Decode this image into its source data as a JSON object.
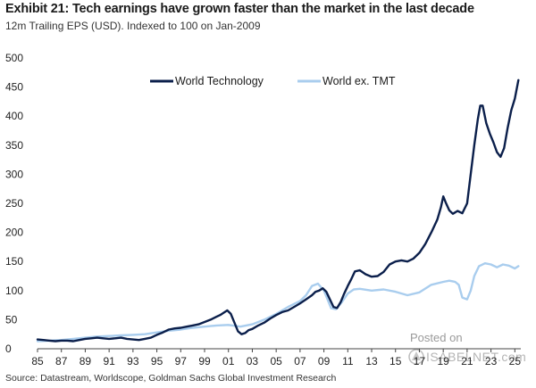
{
  "header": {
    "title": "Exhibit 21: Tech earnings have grown faster than the market in the last decade",
    "subtitle": "12m Trailing EPS (USD). Indexed to 100 on Jan-2009"
  },
  "footer": {
    "source": "Source: Datastream, Worldscope, Goldman Sachs Global Investment Research"
  },
  "watermark": {
    "line1": "Posted on",
    "line2": "ISABELNET.com"
  },
  "colors": {
    "world_technology": "#0b1f4b",
    "world_ex_tmt": "#a9cdee",
    "axis": "#444444"
  },
  "chart_data": {
    "type": "line",
    "title": "Exhibit 21: Tech earnings have grown faster than the market in the last decade",
    "xlabel": "",
    "ylabel": "",
    "xlim": [
      1985,
      2025.5
    ],
    "ylim": [
      0,
      500
    ],
    "yticks": [
      0,
      50,
      100,
      150,
      200,
      250,
      300,
      350,
      400,
      450,
      500
    ],
    "xticks": [
      1985,
      1987,
      1989,
      1991,
      1993,
      1995,
      1997,
      1999,
      2001,
      2003,
      2005,
      2007,
      2009,
      2011,
      2013,
      2015,
      2017,
      2019,
      2021,
      2023,
      2025
    ],
    "xtick_labels": [
      "85",
      "87",
      "89",
      "91",
      "93",
      "95",
      "97",
      "99",
      "01",
      "03",
      "05",
      "07",
      "09",
      "11",
      "13",
      "15",
      "17",
      "19",
      "21",
      "23",
      "25"
    ],
    "grid": false,
    "legend_position": "top-center",
    "series": [
      {
        "name": "World Technology",
        "x": [
          1985,
          1985.5,
          1986,
          1986.5,
          1987,
          1987.5,
          1988,
          1988.5,
          1989,
          1989.5,
          1990,
          1990.5,
          1991,
          1991.5,
          1992,
          1992.5,
          1993,
          1993.5,
          1994,
          1994.5,
          1995,
          1995.5,
          1996,
          1996.5,
          1997,
          1997.5,
          1998,
          1998.5,
          1999,
          1999.5,
          2000,
          2000.3,
          2000.6,
          2000.9,
          2001.2,
          2001.5,
          2001.8,
          2002.1,
          2002.4,
          2002.7,
          2003,
          2003.5,
          2004,
          2004.5,
          2005,
          2005.5,
          2006,
          2006.5,
          2007,
          2007.5,
          2008,
          2008.3,
          2008.6,
          2008.9,
          2009.2,
          2009.5,
          2009.8,
          2010.1,
          2010.4,
          2010.7,
          2011,
          2011.3,
          2011.6,
          2012,
          2012.5,
          2013,
          2013.5,
          2014,
          2014.5,
          2015,
          2015.5,
          2016,
          2016.5,
          2017,
          2017.5,
          2018,
          2018.5,
          2018.8,
          2019,
          2019.2,
          2019.5,
          2019.8,
          2020.2,
          2020.6,
          2021,
          2021.3,
          2021.6,
          2021.9,
          2022.1,
          2022.3,
          2022.6,
          2022.9,
          2023.2,
          2023.5,
          2023.8,
          2024.1,
          2024.4,
          2024.7,
          2025,
          2025.3
        ],
        "values": [
          16,
          15,
          14,
          13,
          14,
          14,
          13,
          15,
          17,
          18,
          19,
          18,
          17,
          18,
          19,
          17,
          16,
          15,
          17,
          19,
          24,
          28,
          33,
          35,
          36,
          38,
          40,
          42,
          46,
          50,
          55,
          58,
          62,
          66,
          60,
          45,
          30,
          25,
          27,
          32,
          34,
          40,
          45,
          52,
          58,
          63,
          66,
          72,
          78,
          85,
          92,
          98,
          100,
          104,
          98,
          85,
          72,
          70,
          80,
          95,
          108,
          120,
          133,
          135,
          128,
          124,
          125,
          132,
          145,
          150,
          152,
          150,
          155,
          165,
          180,
          200,
          222,
          243,
          262,
          252,
          238,
          232,
          237,
          233,
          250,
          300,
          350,
          395,
          418,
          418,
          388,
          370,
          355,
          338,
          330,
          345,
          380,
          410,
          430,
          462
        ]
      },
      {
        "name": "World ex. TMT",
        "x": [
          1985,
          1986,
          1987,
          1988,
          1989,
          1990,
          1991,
          1992,
          1993,
          1994,
          1995,
          1996,
          1997,
          1998,
          1999,
          2000,
          2001,
          2002,
          2003,
          2004,
          2005,
          2006,
          2007,
          2007.5,
          2008,
          2008.5,
          2009,
          2009.3,
          2009.6,
          2010,
          2010.5,
          2011,
          2011.5,
          2012,
          2013,
          2014,
          2015,
          2016,
          2017,
          2018,
          2019,
          2019.5,
          2020,
          2020.3,
          2020.6,
          2021,
          2021.3,
          2021.6,
          2022,
          2022.5,
          2023,
          2023.5,
          2024,
          2024.5,
          2025,
          2025.3
        ],
        "values": [
          13,
          14,
          15,
          17,
          19,
          21,
          22,
          23,
          24,
          25,
          28,
          31,
          33,
          36,
          38,
          40,
          41,
          38,
          42,
          50,
          60,
          72,
          82,
          92,
          108,
          112,
          100,
          85,
          70,
          68,
          80,
          95,
          102,
          103,
          100,
          102,
          98,
          92,
          97,
          110,
          115,
          117,
          115,
          110,
          88,
          85,
          100,
          125,
          142,
          147,
          145,
          140,
          145,
          143,
          138,
          142
        ]
      }
    ]
  }
}
